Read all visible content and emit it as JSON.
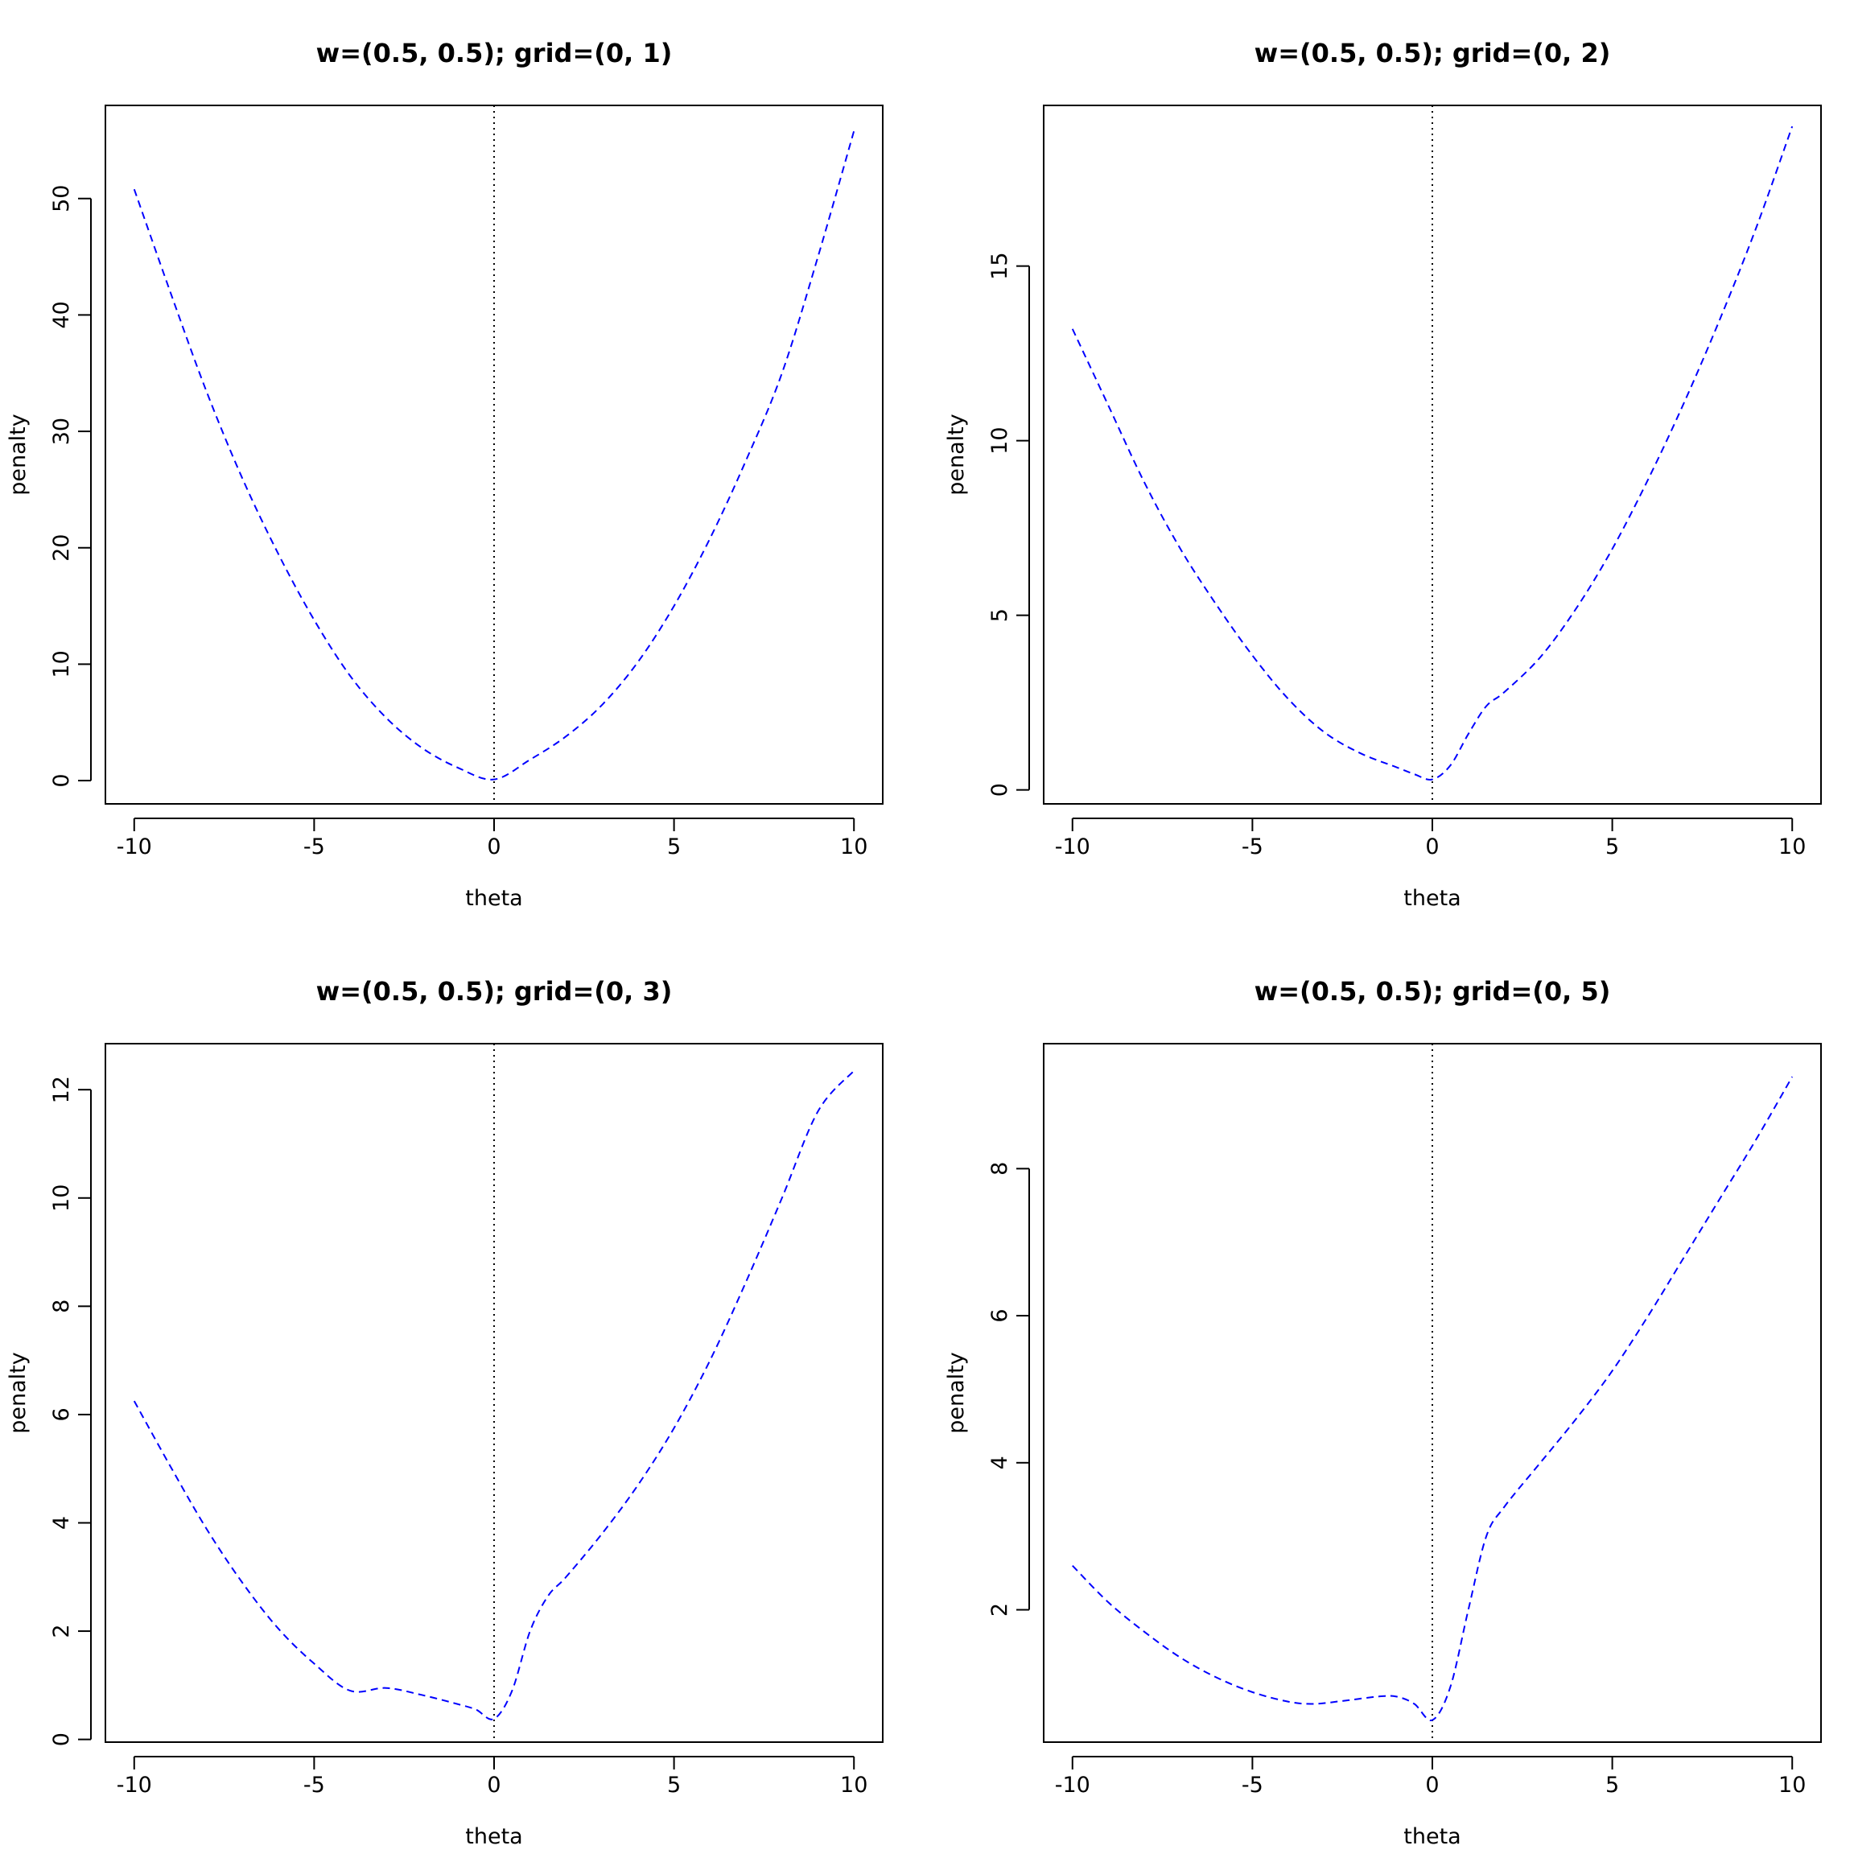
{
  "chart_data": [
    {
      "type": "line",
      "title": "w=(0.5, 0.5); grid=(0, 1)",
      "xlabel": "theta",
      "ylabel": "penalty",
      "xlim": [
        -10.8,
        10.8
      ],
      "ylim": [
        -2.0,
        58.0
      ],
      "xticks": [
        -10,
        -5,
        0,
        5,
        10
      ],
      "xtick_labels": [
        "-10",
        "-5",
        "0",
        "5",
        "10"
      ],
      "yticks": [
        0,
        10,
        20,
        30,
        40,
        50
      ],
      "ytick_labels": [
        "0",
        "10",
        "20",
        "30",
        "40",
        "50"
      ],
      "vline": {
        "x": 0,
        "style": "dotted",
        "color": "#000000"
      },
      "series": [
        {
          "color": "#0000ff",
          "style": "dashed",
          "x": [
            -10,
            -9,
            -8,
            -7,
            -6,
            -5,
            -4,
            -3,
            -2,
            -1,
            0,
            1,
            2,
            3,
            4,
            5,
            6,
            7,
            8,
            9,
            10
          ],
          "y": [
            50.8,
            42.0,
            33.5,
            26.0,
            19.5,
            13.8,
            9.0,
            5.4,
            2.8,
            1.1,
            0.1,
            1.8,
            3.8,
            6.5,
            10.2,
            15.0,
            20.8,
            27.5,
            35.0,
            45.0,
            55.8
          ]
        }
      ]
    },
    {
      "type": "line",
      "title": "w=(0.5, 0.5); grid=(0, 2)",
      "xlabel": "theta",
      "ylabel": "penalty",
      "xlim": [
        -10.8,
        10.8
      ],
      "ylim": [
        -0.4,
        19.6
      ],
      "xticks": [
        -10,
        -5,
        0,
        5,
        10
      ],
      "xtick_labels": [
        "-10",
        "-5",
        "0",
        "5",
        "10"
      ],
      "yticks": [
        0,
        5,
        10,
        15
      ],
      "ytick_labels": [
        "0",
        "5",
        "10",
        "15"
      ],
      "vline": {
        "x": 0,
        "style": "dotted",
        "color": "#000000"
      },
      "series": [
        {
          "color": "#0000ff",
          "style": "dashed",
          "x": [
            -10,
            -9,
            -8,
            -7,
            -6,
            -5,
            -4,
            -3,
            -2,
            -1,
            -0.5,
            0,
            0.5,
            1,
            1.5,
            2,
            3,
            4,
            5,
            6,
            7,
            8,
            9,
            10
          ],
          "y": [
            13.2,
            11.0,
            8.8,
            6.9,
            5.3,
            3.85,
            2.6,
            1.65,
            1.05,
            0.65,
            0.45,
            0.3,
            0.7,
            1.6,
            2.4,
            2.8,
            3.8,
            5.2,
            6.9,
            8.9,
            11.1,
            13.5,
            16.1,
            19.0
          ]
        }
      ]
    },
    {
      "type": "line",
      "title": "w=(0.5, 0.5); grid=(0, 3)",
      "xlabel": "theta",
      "ylabel": "penalty",
      "xlim": [
        -10.8,
        10.8
      ],
      "ylim": [
        -0.05,
        12.85
      ],
      "xticks": [
        -10,
        -5,
        0,
        5,
        10
      ],
      "xtick_labels": [
        "-10",
        "-5",
        "0",
        "5",
        "10"
      ],
      "yticks": [
        0,
        2,
        4,
        6,
        8,
        10,
        12
      ],
      "ytick_labels": [
        "0",
        "2",
        "4",
        "6",
        "8",
        "10",
        "12"
      ],
      "vline": {
        "x": 0,
        "style": "dotted",
        "color": "#000000"
      },
      "series": [
        {
          "color": "#0000ff",
          "style": "dashed",
          "x": [
            -10,
            -9,
            -8,
            -7,
            -6,
            -5,
            -4,
            -3,
            -2,
            -1,
            -0.5,
            0,
            0.5,
            1,
            1.5,
            2,
            3,
            4,
            5,
            6,
            7,
            8,
            9,
            10
          ],
          "y": [
            6.25,
            5.05,
            3.9,
            2.9,
            2.05,
            1.4,
            0.9,
            0.95,
            0.82,
            0.65,
            0.55,
            0.38,
            0.9,
            2.0,
            2.65,
            3.0,
            3.8,
            4.7,
            5.75,
            7.0,
            8.45,
            10.0,
            11.6,
            12.35
          ]
        }
      ]
    },
    {
      "type": "line",
      "title": "w=(0.5, 0.5); grid=(0, 5)",
      "xlabel": "theta",
      "ylabel": "penalty",
      "xlim": [
        -10.8,
        10.8
      ],
      "ylim": [
        0.2,
        9.7
      ],
      "xticks": [
        -10,
        -5,
        0,
        5,
        10
      ],
      "xtick_labels": [
        "-10",
        "-5",
        "0",
        "5",
        "10"
      ],
      "yticks": [
        2,
        4,
        6,
        8
      ],
      "ytick_labels": [
        "2",
        "4",
        "6",
        "8"
      ],
      "vline": {
        "x": 0,
        "style": "dotted",
        "color": "#000000"
      },
      "series": [
        {
          "color": "#0000ff",
          "style": "dashed",
          "x": [
            -10,
            -9,
            -8,
            -7,
            -6,
            -5,
            -4,
            -3.3,
            -2.5,
            -1.5,
            -1,
            -0.5,
            0,
            0.5,
            1,
            1.5,
            2,
            3,
            4,
            5,
            6,
            7,
            8,
            9,
            10
          ],
          "y": [
            2.6,
            2.1,
            1.7,
            1.35,
            1.08,
            0.88,
            0.75,
            0.72,
            0.76,
            0.82,
            0.82,
            0.72,
            0.5,
            0.95,
            2.0,
            3.0,
            3.4,
            4.0,
            4.6,
            5.25,
            6.0,
            6.8,
            7.6,
            8.4,
            9.25
          ]
        }
      ]
    }
  ]
}
